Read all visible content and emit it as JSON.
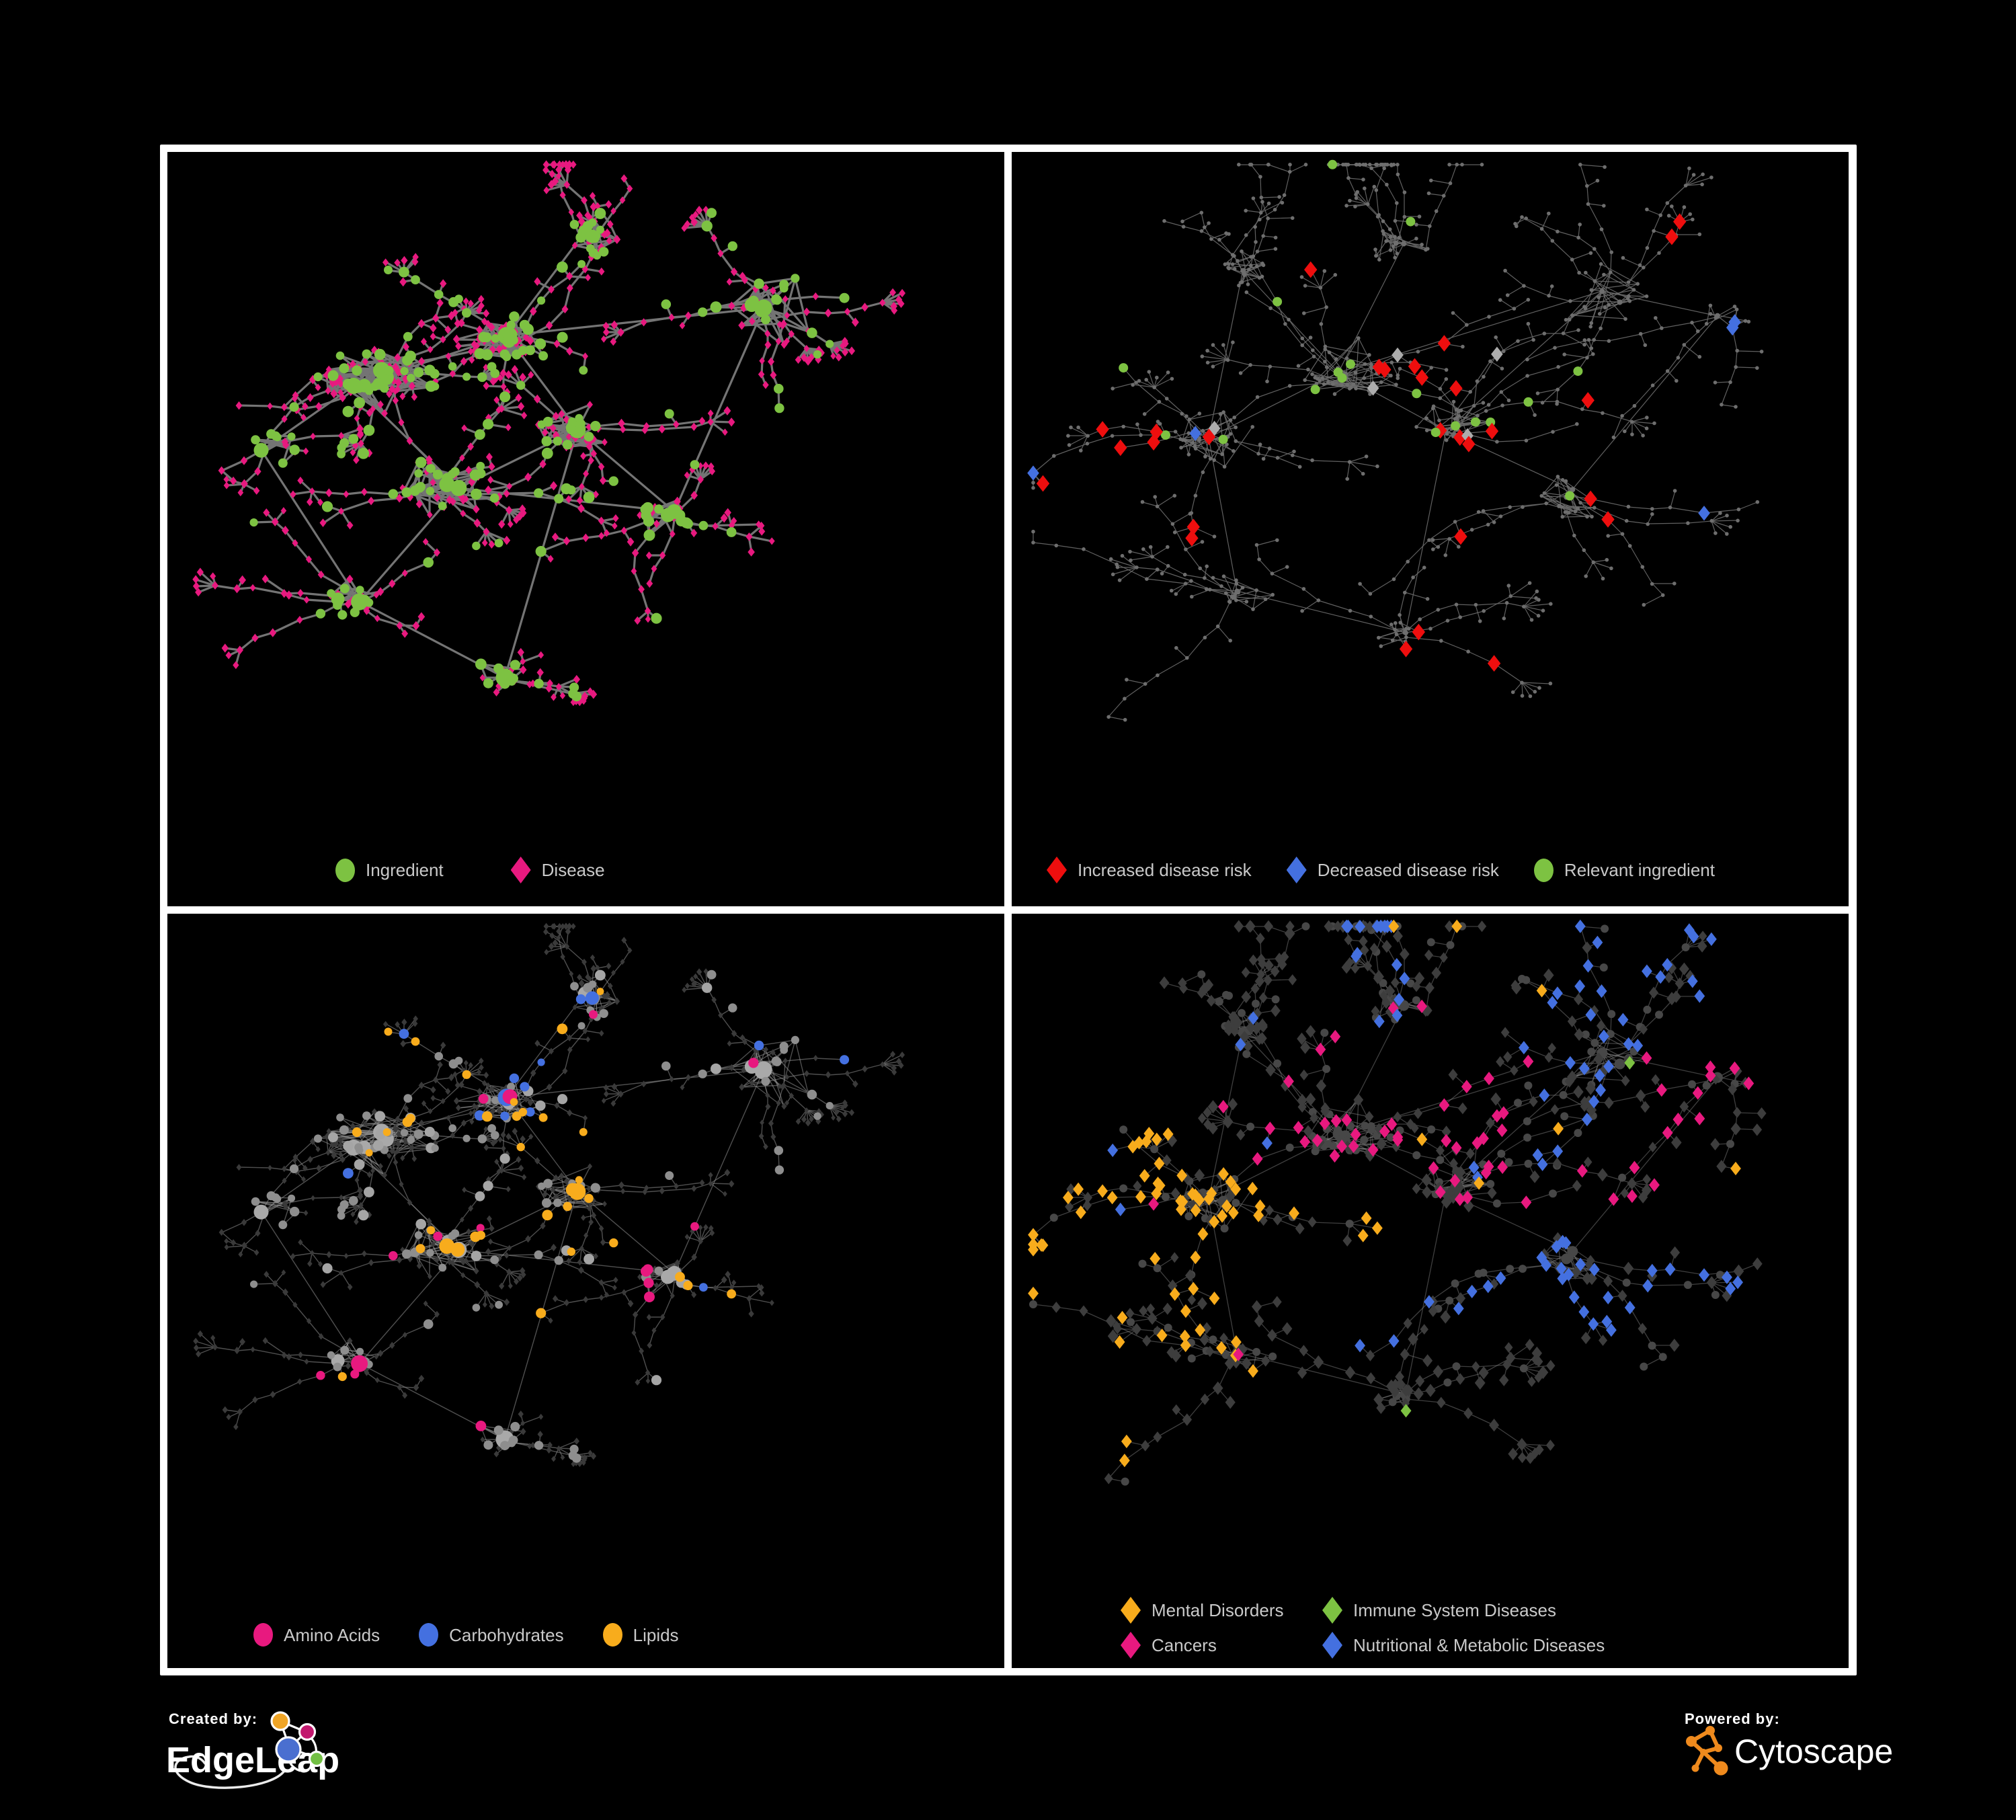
{
  "colors": {
    "green": "#7DC242",
    "pink": "#E8197F",
    "red": "#EE0E0E",
    "blue": "#4470E0",
    "orange": "#F8AC1C",
    "silver": "#ADADAD",
    "legend_text": "#C9C9C9",
    "panel_border": "#FFFFFF",
    "background": "#000000",
    "edgeleap_blue": "#4A6FD0",
    "edgeleap_pink": "#C2186E",
    "edgeleap_orange": "#F0A526",
    "edgeleap_green": "#72BF44",
    "cytoscape_orange": "#EF8A1D"
  },
  "panels": [
    {
      "id": "ingredient-disease",
      "legend": [
        {
          "label": "Ingredient",
          "shape": "circle",
          "color": "#7DC242"
        },
        {
          "label": "Disease",
          "shape": "diamond",
          "color": "#E8197F"
        }
      ]
    },
    {
      "id": "disease-risk",
      "legend": [
        {
          "label": "Increased disease risk",
          "shape": "diamond",
          "color": "#EE0E0E"
        },
        {
          "label": "Decreased disease risk",
          "shape": "diamond",
          "color": "#4470E0"
        },
        {
          "label": "Relevant ingredient",
          "shape": "circle",
          "color": "#7DC242"
        }
      ]
    },
    {
      "id": "macronutrients",
      "legend": [
        {
          "label": "Amino Acids",
          "shape": "circle",
          "color": "#E8197F"
        },
        {
          "label": "Carbohydrates",
          "shape": "circle",
          "color": "#4470E0"
        },
        {
          "label": "Lipids",
          "shape": "circle",
          "color": "#F8AC1C"
        }
      ]
    },
    {
      "id": "disease-categories",
      "legend": [
        {
          "label": "Mental Disorders",
          "shape": "diamond",
          "color": "#F8AC1C"
        },
        {
          "label": "Immune System Diseases",
          "shape": "diamond",
          "color": "#7DC242"
        },
        {
          "label": "Cancers",
          "shape": "diamond",
          "color": "#E8197F"
        },
        {
          "label": "Nutritional & Metabolic Diseases",
          "shape": "diamond",
          "color": "#4470E0"
        }
      ]
    }
  ],
  "footer": {
    "created_by_label": "Created by:",
    "created_by_name": "EdgeLeap",
    "powered_by_label": "Powered by:",
    "powered_by_name": "Cytoscape"
  }
}
